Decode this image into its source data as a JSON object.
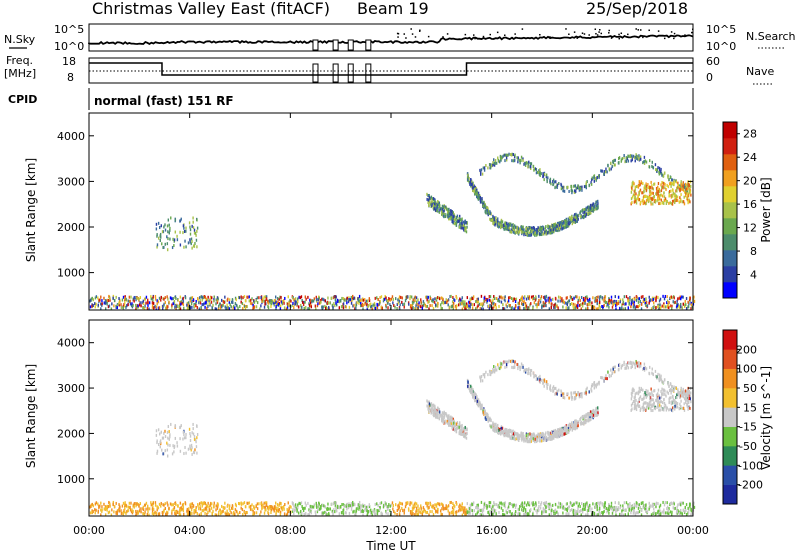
{
  "header": {
    "title": "Christmas Valley East (fitACF)",
    "beam": "Beam 19",
    "date": "25/Sep/2018"
  },
  "strip_labels": {
    "nsky": "N.Sky",
    "nsky_top": "10^5",
    "nsky_bottom": "10^0",
    "nsearch_top": "10^5",
    "nsearch_bottom": "10^0",
    "nsearch": "N.Search",
    "freq_line1": "Freq.",
    "freq_line2": "[MHz]",
    "freq_top": "18",
    "freq_bottom": "8",
    "nave_top": "60",
    "nave_bottom": "0",
    "nave": "Nave",
    "cpid": "CPID",
    "cpid_value": "normal (fast) 151 RF"
  },
  "colors": {
    "power_scale": [
      "#0000ff",
      "#2b3fa3",
      "#3a6b9c",
      "#4c8c6c",
      "#6aa84f",
      "#a8c24a",
      "#e0d030",
      "#f0a020",
      "#e06010",
      "#d02010",
      "#c00000"
    ],
    "velocity_scale": [
      "#1e2b9e",
      "#2a4fa8",
      "#2e8b57",
      "#6ac040",
      "#c8c8c8",
      "#f2c030",
      "#f09020",
      "#e05020",
      "#d01010"
    ]
  },
  "chart_data": [
    {
      "type": "heatmap",
      "name": "power",
      "ylabel": "Slant Range [km]",
      "yticks": [
        "1000",
        "2000",
        "3000",
        "4000"
      ],
      "ylim": [
        180,
        4500
      ],
      "xlim": [
        0,
        24
      ],
      "colorbar_label": "Power [dB]",
      "colorbar_ticks": [
        "4",
        "8",
        "12",
        "16",
        "20",
        "24",
        "28"
      ],
      "colorbar_range": [
        0,
        30
      ]
    },
    {
      "type": "heatmap",
      "name": "velocity",
      "ylabel": "Slant Range [km]",
      "yticks": [
        "1000",
        "2000",
        "3000",
        "4000"
      ],
      "ylim": [
        180,
        4500
      ],
      "xlim": [
        0,
        24
      ],
      "colorbar_label": "Velocity [m s^-1]",
      "colorbar_ticks": [
        "200",
        "100",
        "50",
        "15",
        "-15",
        "-50",
        "-100",
        "-200"
      ]
    }
  ],
  "xaxis": {
    "label": "Time UT",
    "ticks": [
      "00:00",
      "04:00",
      "08:00",
      "12:00",
      "16:00",
      "20:00",
      "00:00"
    ]
  }
}
